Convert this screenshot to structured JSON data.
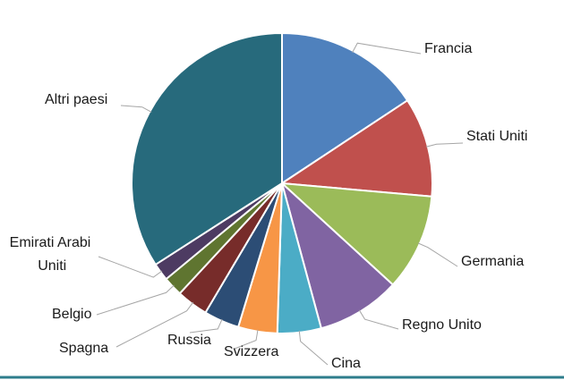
{
  "chart_data": {
    "type": "pie",
    "categories": [
      "Francia",
      "Stati Uniti",
      "Germania",
      "Regno Unito",
      "Cina",
      "Svizzera",
      "Russia",
      "Spagna",
      "Belgio",
      "Emirati Arabi Uniti",
      "Altri paesi"
    ],
    "values": [
      15.7,
      10.7,
      10.4,
      9.0,
      4.7,
      4.2,
      3.8,
      3.4,
      2.1,
      1.9,
      34.1
    ],
    "colors": [
      "#4f81bd",
      "#c0504d",
      "#9bbb59",
      "#8064a2",
      "#4bacc6",
      "#f79646",
      "#2c4d75",
      "#772c2a",
      "#5f7530",
      "#4d3b62",
      "#276a7c"
    ]
  }
}
